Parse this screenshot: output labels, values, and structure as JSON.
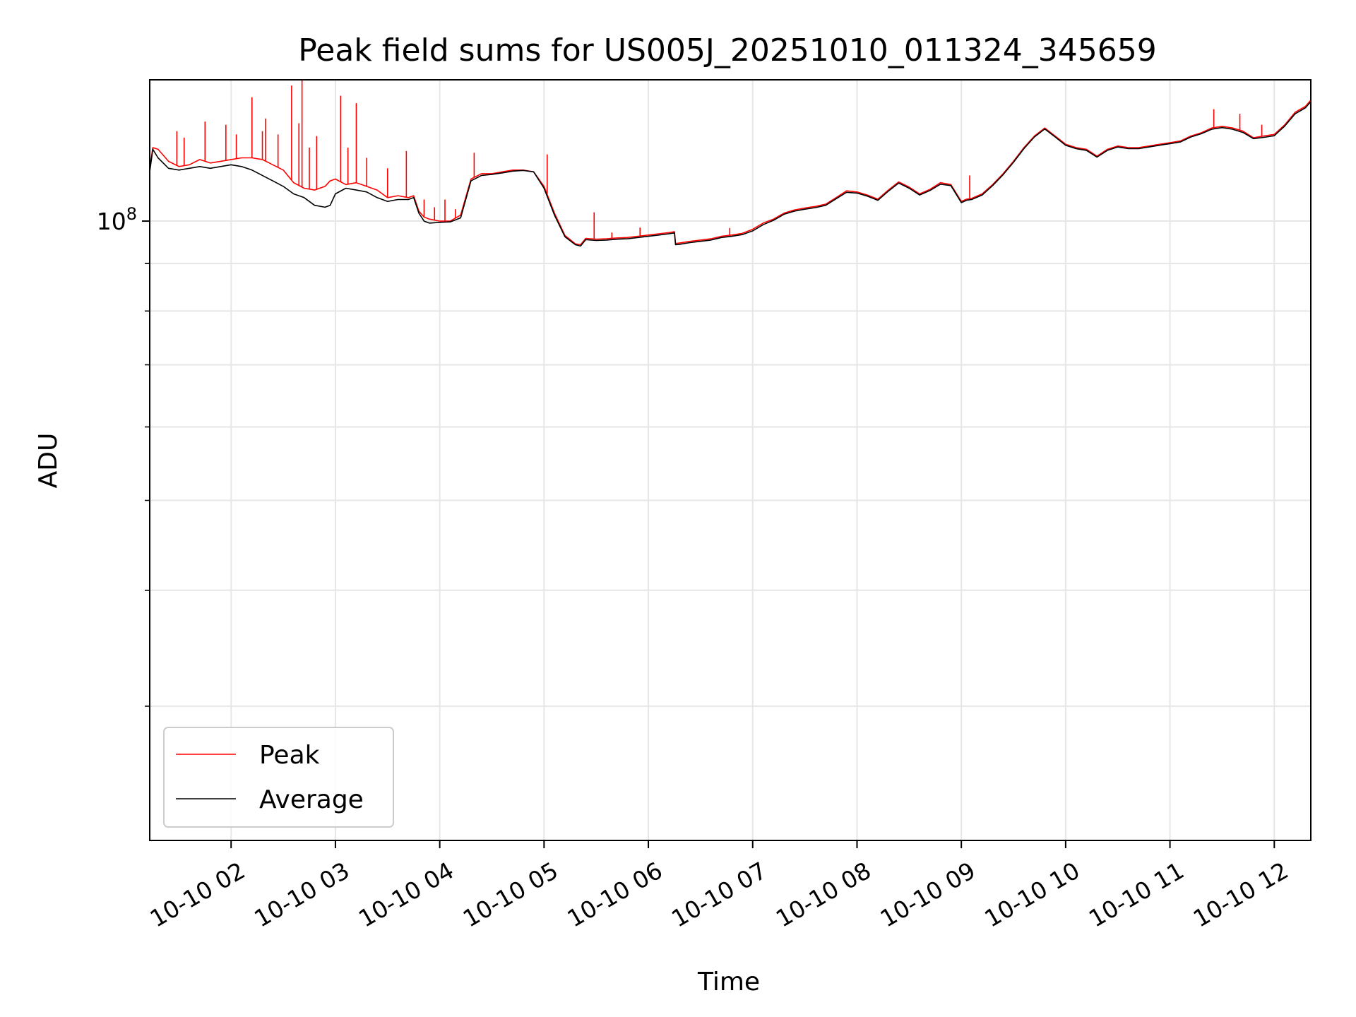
{
  "chart_data": {
    "type": "line",
    "title": "Peak field sums for US005J_20251010_011324_345659",
    "xlabel": "Time",
    "ylabel": "ADU",
    "yscale": "log",
    "ylim": [
      21500000,
      142000000
    ],
    "xlim": [
      1.22,
      12.35
    ],
    "grid": true,
    "legend_position": "lower-left",
    "x_ticks": [
      {
        "value": 2,
        "label": "10-10 02"
      },
      {
        "value": 3,
        "label": "10-10 03"
      },
      {
        "value": 4,
        "label": "10-10 04"
      },
      {
        "value": 5,
        "label": "10-10 05"
      },
      {
        "value": 6,
        "label": "10-10 06"
      },
      {
        "value": 7,
        "label": "10-10 07"
      },
      {
        "value": 8,
        "label": "10-10 08"
      },
      {
        "value": 9,
        "label": "10-10 09"
      },
      {
        "value": 10,
        "label": "10-10 10"
      },
      {
        "value": 11,
        "label": "10-10 11"
      },
      {
        "value": 12,
        "label": "10-10 12"
      }
    ],
    "y_major_ticks": [
      {
        "value": 100000000,
        "base": "10",
        "exp": "8"
      }
    ],
    "y_minor_ticks": [
      30000000,
      40000000,
      50000000,
      60000000,
      70000000,
      80000000,
      90000000
    ],
    "series": [
      {
        "name": "Peak",
        "color": "#ff0000",
        "x": [
          1.22,
          1.25,
          1.3,
          1.4,
          1.5,
          1.6,
          1.7,
          1.8,
          1.9,
          2.0,
          2.1,
          2.2,
          2.3,
          2.4,
          2.5,
          2.6,
          2.7,
          2.8,
          2.9,
          2.95,
          3.0,
          3.1,
          3.2,
          3.3,
          3.4,
          3.5,
          3.6,
          3.7,
          3.75,
          3.8,
          3.85,
          3.9,
          4.0,
          4.1,
          4.2,
          4.3,
          4.4,
          4.5,
          4.6,
          4.7,
          4.8,
          4.9,
          5.0,
          5.1,
          5.2,
          5.3,
          5.35,
          5.4,
          5.5,
          5.6,
          5.7,
          5.8,
          5.9,
          6.0,
          6.1,
          6.2,
          6.25,
          6.26,
          6.3,
          6.4,
          6.5,
          6.6,
          6.7,
          6.8,
          6.9,
          7.0,
          7.1,
          7.2,
          7.3,
          7.4,
          7.5,
          7.6,
          7.7,
          7.8,
          7.9,
          8.0,
          8.1,
          8.2,
          8.3,
          8.4,
          8.5,
          8.6,
          8.7,
          8.8,
          8.9,
          9.0,
          9.05,
          9.1,
          9.2,
          9.3,
          9.4,
          9.5,
          9.6,
          9.7,
          9.8,
          9.9,
          10.0,
          10.1,
          10.2,
          10.3,
          10.4,
          10.5,
          10.6,
          10.7,
          10.8,
          10.9,
          11.0,
          11.1,
          11.2,
          11.3,
          11.4,
          11.5,
          11.6,
          11.7,
          11.8,
          11.9,
          12.0,
          12.1,
          12.2,
          12.3,
          12.35
        ],
        "y": [
          114000000,
          120000000,
          119500000,
          116000000,
          114500000,
          115000000,
          116500000,
          115500000,
          116000000,
          116500000,
          117000000,
          117000000,
          116500000,
          115000000,
          113500000,
          110000000,
          108500000,
          108000000,
          109000000,
          110500000,
          111000000,
          109500000,
          110000000,
          109000000,
          108000000,
          106000000,
          106500000,
          106000000,
          106500000,
          102500000,
          101000000,
          100500000,
          100000000,
          100000000,
          101500000,
          111000000,
          112500000,
          112500000,
          113000000,
          113500000,
          113500000,
          113000000,
          109000000,
          102000000,
          96500000,
          94500000,
          94300000,
          95800000,
          95600000,
          95700000,
          95900000,
          96000000,
          96300000,
          96600000,
          96900000,
          97200000,
          97400000,
          94600000,
          94700000,
          95100000,
          95400000,
          95700000,
          96300000,
          96600000,
          97000000,
          98000000,
          99500000,
          100500000,
          102000000,
          102800000,
          103300000,
          103700000,
          104300000,
          106000000,
          107800000,
          107500000,
          106700000,
          105600000,
          108000000,
          110200000,
          108800000,
          107000000,
          108200000,
          110000000,
          109500000,
          105000000,
          105600000,
          105800000,
          107000000,
          109500000,
          112500000,
          116000000,
          120000000,
          123500000,
          126000000,
          123500000,
          121000000,
          120000000,
          119500000,
          117500000,
          119500000,
          120500000,
          120000000,
          120000000,
          120500000,
          121000000,
          121500000,
          122000000,
          123500000,
          124500000,
          126000000,
          126500000,
          126000000,
          125000000,
          123000000,
          123500000,
          124000000,
          127000000,
          131000000,
          133000000,
          135000000
        ],
        "spikes": [
          {
            "x": 1.48,
            "y": 125000000
          },
          {
            "x": 1.55,
            "y": 123000000
          },
          {
            "x": 1.75,
            "y": 128000000
          },
          {
            "x": 1.95,
            "y": 127000000
          },
          {
            "x": 2.05,
            "y": 124000000
          },
          {
            "x": 2.2,
            "y": 136000000
          },
          {
            "x": 2.3,
            "y": 125000000
          },
          {
            "x": 2.33,
            "y": 129000000
          },
          {
            "x": 2.45,
            "y": 124000000
          },
          {
            "x": 2.58,
            "y": 140000000
          },
          {
            "x": 2.65,
            "y": 127500000
          },
          {
            "x": 2.68,
            "y": 142000000
          },
          {
            "x": 2.75,
            "y": 120000000
          },
          {
            "x": 2.82,
            "y": 123500000
          },
          {
            "x": 3.05,
            "y": 136500000
          },
          {
            "x": 3.12,
            "y": 120000000
          },
          {
            "x": 3.2,
            "y": 134000000
          },
          {
            "x": 3.3,
            "y": 117000000
          },
          {
            "x": 3.5,
            "y": 114000000
          },
          {
            "x": 3.68,
            "y": 119000000
          },
          {
            "x": 3.85,
            "y": 105500000
          },
          {
            "x": 3.95,
            "y": 103500000
          },
          {
            "x": 4.05,
            "y": 105500000
          },
          {
            "x": 4.15,
            "y": 103000000
          },
          {
            "x": 4.33,
            "y": 118500000
          },
          {
            "x": 5.03,
            "y": 118000000
          },
          {
            "x": 5.48,
            "y": 102200000
          },
          {
            "x": 5.65,
            "y": 97200000
          },
          {
            "x": 5.92,
            "y": 98400000
          },
          {
            "x": 6.78,
            "y": 98300000
          },
          {
            "x": 9.08,
            "y": 112000000
          },
          {
            "x": 11.42,
            "y": 132000000
          },
          {
            "x": 11.67,
            "y": 130500000
          },
          {
            "x": 11.88,
            "y": 127000000
          }
        ]
      },
      {
        "name": "Average",
        "color": "#000000",
        "x": [
          1.22,
          1.25,
          1.3,
          1.4,
          1.5,
          1.6,
          1.7,
          1.8,
          1.9,
          2.0,
          2.1,
          2.2,
          2.3,
          2.4,
          2.5,
          2.6,
          2.7,
          2.8,
          2.9,
          2.95,
          3.0,
          3.1,
          3.2,
          3.3,
          3.4,
          3.5,
          3.6,
          3.7,
          3.75,
          3.8,
          3.85,
          3.9,
          4.0,
          4.1,
          4.2,
          4.3,
          4.4,
          4.5,
          4.6,
          4.7,
          4.8,
          4.9,
          5.0,
          5.1,
          5.2,
          5.3,
          5.35,
          5.4,
          5.5,
          5.6,
          5.7,
          5.8,
          5.9,
          6.0,
          6.1,
          6.2,
          6.25,
          6.26,
          6.3,
          6.4,
          6.5,
          6.6,
          6.7,
          6.8,
          6.9,
          7.0,
          7.1,
          7.2,
          7.3,
          7.4,
          7.5,
          7.6,
          7.7,
          7.8,
          7.9,
          8.0,
          8.1,
          8.2,
          8.3,
          8.4,
          8.5,
          8.6,
          8.7,
          8.8,
          8.9,
          9.0,
          9.05,
          9.1,
          9.2,
          9.3,
          9.4,
          9.5,
          9.6,
          9.7,
          9.8,
          9.9,
          10.0,
          10.1,
          10.2,
          10.3,
          10.4,
          10.5,
          10.6,
          10.7,
          10.8,
          10.9,
          11.0,
          11.1,
          11.2,
          11.3,
          11.4,
          11.5,
          11.6,
          11.7,
          11.8,
          11.9,
          12.0,
          12.1,
          12.2,
          12.3,
          12.35
        ],
        "y": [
          113000000,
          119500000,
          117000000,
          114000000,
          113500000,
          114000000,
          114500000,
          114000000,
          114500000,
          115000000,
          114500000,
          113500000,
          112000000,
          110500000,
          109000000,
          107000000,
          106000000,
          104000000,
          103500000,
          104000000,
          107000000,
          108500000,
          108000000,
          107500000,
          106000000,
          105000000,
          105500000,
          105500000,
          106000000,
          102000000,
          100000000,
          99500000,
          99700000,
          99800000,
          100800000,
          110500000,
          112000000,
          112300000,
          112700000,
          113200000,
          113400000,
          113000000,
          108500000,
          101500000,
          96200000,
          94300000,
          94000000,
          95500000,
          95300000,
          95400000,
          95600000,
          95700000,
          96000000,
          96300000,
          96600000,
          96900000,
          97100000,
          94300000,
          94400000,
          94800000,
          95100000,
          95400000,
          96000000,
          96300000,
          96700000,
          97600000,
          99100000,
          100200000,
          101700000,
          102500000,
          103000000,
          103400000,
          104000000,
          105700000,
          107400000,
          107200000,
          106400000,
          105300000,
          107700000,
          109900000,
          108500000,
          106700000,
          107900000,
          109600000,
          109200000,
          104700000,
          105300000,
          105500000,
          106700000,
          109200000,
          112200000,
          115700000,
          119700000,
          123200000,
          125700000,
          123200000,
          120700000,
          119700000,
          119200000,
          117200000,
          119200000,
          120200000,
          119700000,
          119700000,
          120200000,
          120700000,
          121200000,
          121700000,
          123200000,
          124200000,
          125600000,
          126100000,
          125600000,
          124600000,
          122700000,
          123100000,
          123600000,
          126600000,
          130500000,
          132500000,
          134500000
        ]
      }
    ]
  }
}
